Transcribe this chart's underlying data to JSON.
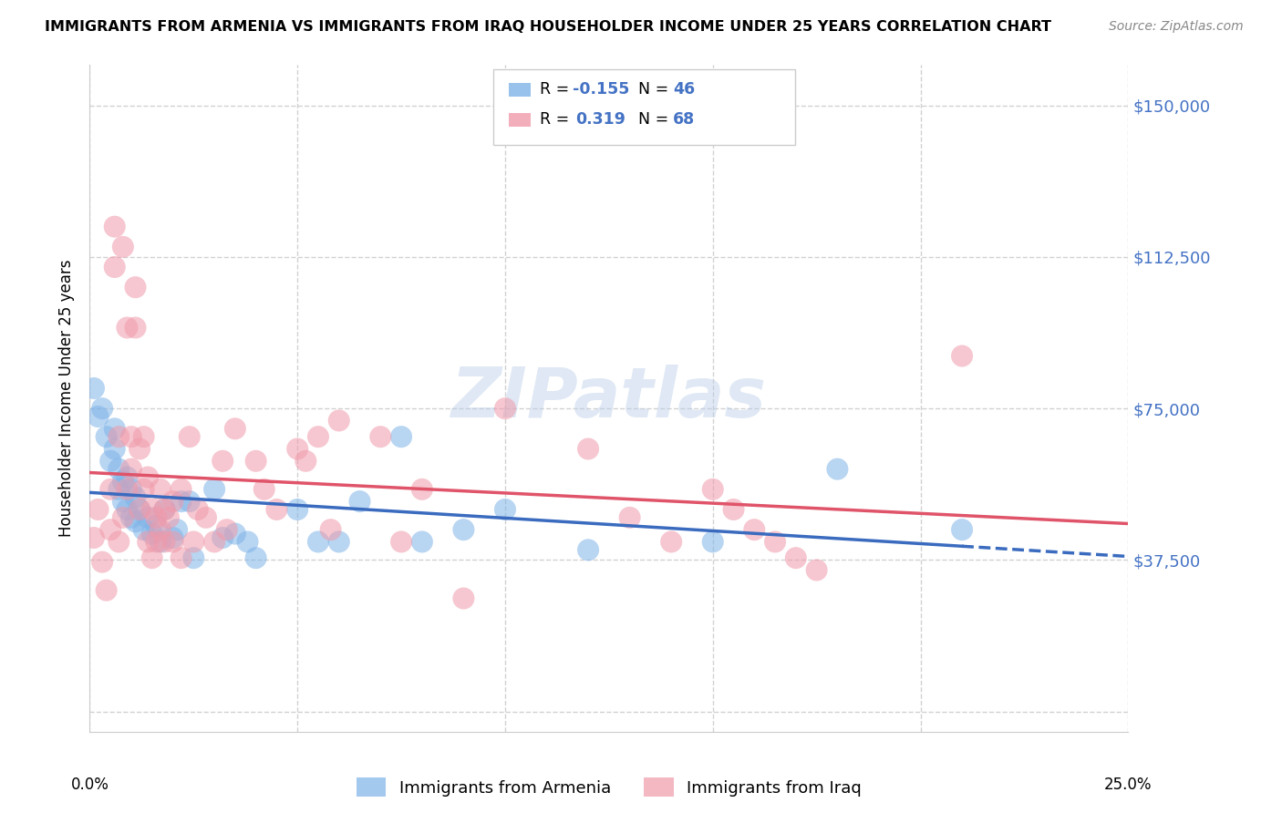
{
  "title": "IMMIGRANTS FROM ARMENIA VS IMMIGRANTS FROM IRAQ HOUSEHOLDER INCOME UNDER 25 YEARS CORRELATION CHART",
  "source": "Source: ZipAtlas.com",
  "ylabel": "Householder Income Under 25 years",
  "yticks": [
    0,
    37500,
    75000,
    112500,
    150000
  ],
  "ytick_labels": [
    "",
    "$37,500",
    "$75,000",
    "$112,500",
    "$150,000"
  ],
  "xmin": 0.0,
  "xmax": 0.25,
  "ymin": -5000,
  "ymax": 160000,
  "legend_armenia": "Immigrants from Armenia",
  "legend_iraq": "Immigrants from Iraq",
  "r_armenia": "-0.155",
  "n_armenia": "46",
  "r_iraq": "0.319",
  "n_iraq": "68",
  "armenia_color": "#7eb3e8",
  "iraq_color": "#f09aaa",
  "armenia_line_color": "#3a6bbf",
  "iraq_line_color": "#e0546a",
  "background_color": "#ffffff",
  "grid_color": "#cccccc",
  "watermark": "ZIPatlas",
  "armenia_x": [
    0.001,
    0.002,
    0.003,
    0.004,
    0.005,
    0.006,
    0.006,
    0.007,
    0.007,
    0.008,
    0.008,
    0.009,
    0.009,
    0.01,
    0.01,
    0.011,
    0.011,
    0.012,
    0.013,
    0.014,
    0.015,
    0.016,
    0.017,
    0.018,
    0.02,
    0.021,
    0.022,
    0.024,
    0.025,
    0.03,
    0.032,
    0.035,
    0.038,
    0.04,
    0.05,
    0.055,
    0.06,
    0.065,
    0.075,
    0.08,
    0.09,
    0.1,
    0.12,
    0.15,
    0.18,
    0.21
  ],
  "armenia_y": [
    80000,
    73000,
    75000,
    68000,
    62000,
    65000,
    70000,
    55000,
    60000,
    57000,
    52000,
    58000,
    50000,
    55000,
    48000,
    53000,
    47000,
    50000,
    45000,
    48000,
    44000,
    46000,
    42000,
    50000,
    43000,
    45000,
    52000,
    52000,
    38000,
    55000,
    43000,
    44000,
    42000,
    38000,
    50000,
    42000,
    42000,
    52000,
    68000,
    42000,
    45000,
    50000,
    40000,
    42000,
    60000,
    45000
  ],
  "iraq_x": [
    0.001,
    0.002,
    0.003,
    0.004,
    0.005,
    0.005,
    0.006,
    0.006,
    0.007,
    0.007,
    0.008,
    0.008,
    0.009,
    0.009,
    0.01,
    0.01,
    0.011,
    0.011,
    0.012,
    0.012,
    0.013,
    0.013,
    0.014,
    0.014,
    0.015,
    0.015,
    0.016,
    0.016,
    0.017,
    0.017,
    0.018,
    0.018,
    0.019,
    0.02,
    0.02,
    0.022,
    0.022,
    0.024,
    0.025,
    0.026,
    0.028,
    0.03,
    0.032,
    0.033,
    0.035,
    0.04,
    0.042,
    0.045,
    0.05,
    0.052,
    0.055,
    0.058,
    0.06,
    0.07,
    0.075,
    0.08,
    0.09,
    0.1,
    0.12,
    0.13,
    0.14,
    0.15,
    0.155,
    0.16,
    0.165,
    0.17,
    0.175,
    0.21
  ],
  "iraq_y": [
    43000,
    50000,
    37000,
    30000,
    55000,
    45000,
    120000,
    110000,
    42000,
    68000,
    48000,
    115000,
    55000,
    95000,
    60000,
    68000,
    95000,
    105000,
    65000,
    50000,
    55000,
    68000,
    58000,
    42000,
    50000,
    38000,
    48000,
    42000,
    55000,
    45000,
    42000,
    50000,
    48000,
    42000,
    52000,
    38000,
    55000,
    68000,
    42000,
    50000,
    48000,
    42000,
    62000,
    45000,
    70000,
    62000,
    55000,
    50000,
    65000,
    62000,
    68000,
    45000,
    72000,
    68000,
    42000,
    55000,
    28000,
    75000,
    65000,
    48000,
    42000,
    55000,
    50000,
    45000,
    42000,
    38000,
    35000,
    88000
  ]
}
